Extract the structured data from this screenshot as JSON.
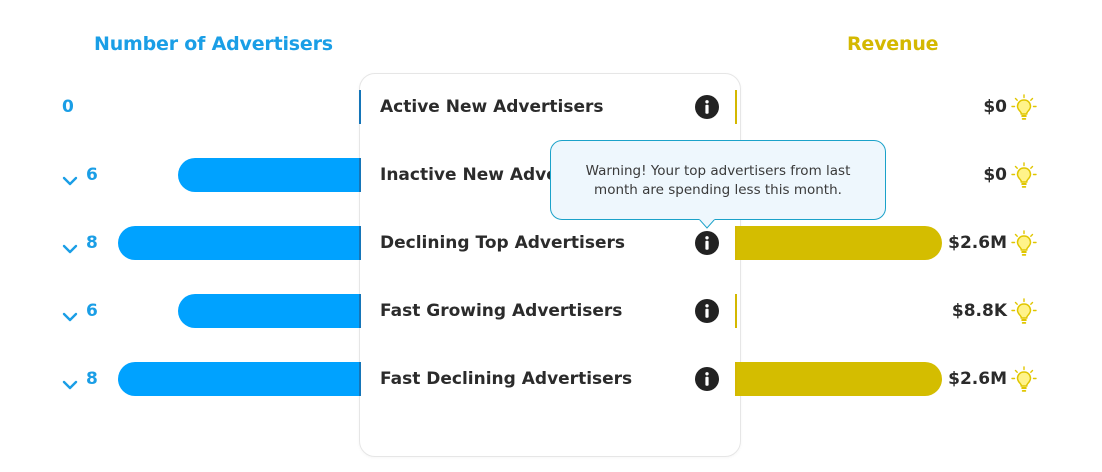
{
  "headers": {
    "left": "Number of Advertisers",
    "right": "Revenue"
  },
  "tooltip": {
    "text": "Warning! Your top advertisers from last month are spending less this month."
  },
  "colors": {
    "advertisers_bar": "#00a2ff",
    "revenue_bar": "#d4bd00",
    "left_header": "#1a9ee6",
    "right_header": "#d4b800"
  },
  "chart_data": {
    "type": "bar",
    "categories": [
      "Active New Advertisers",
      "Inactive New Advertisers",
      "Declining Top Advertisers",
      "Fast Growing Advertisers",
      "Fast Declining Advertisers"
    ],
    "series": [
      {
        "name": "Number of Advertisers",
        "values": [
          0,
          6,
          8,
          6,
          8
        ],
        "labels": [
          "0",
          "6",
          "8",
          "6",
          "8"
        ],
        "expandable": [
          false,
          true,
          true,
          true,
          true
        ]
      },
      {
        "name": "Revenue",
        "values": [
          0,
          0,
          2600000,
          8800,
          2600000
        ],
        "labels": [
          "$0",
          "$0",
          "$2.6M",
          "$8.8K",
          "$2.6M"
        ]
      }
    ]
  },
  "icons": {
    "row_info": "info-icon",
    "row_insight": "lightbulb-icon",
    "expand": "chevron-down-icon"
  }
}
